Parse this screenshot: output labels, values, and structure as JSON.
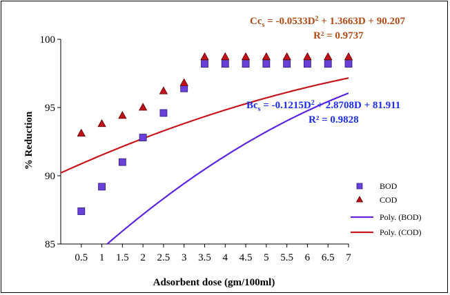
{
  "chart_data": {
    "type": "scatter",
    "xlabel": "Adsorbent dose (gm/100ml)",
    "ylabel": "% Reduction",
    "xlim": [
      0,
      7
    ],
    "ylim": [
      85,
      100
    ],
    "x_ticks": [
      "0.5",
      "1",
      "1.5",
      "2",
      "2.5",
      "3",
      "3.5",
      "4",
      "4.5",
      "5",
      "5.5",
      "6",
      "6.5",
      "7"
    ],
    "y_ticks": [
      "85",
      "90",
      "95",
      "100"
    ],
    "grid": false,
    "legend_position": "right",
    "series": [
      {
        "name": "BOD",
        "marker": "square",
        "color": "#6a40d8",
        "x": [
          0.5,
          1,
          1.5,
          2,
          2.5,
          3,
          3.5,
          4,
          4.5,
          5,
          5.5,
          6,
          6.5,
          7
        ],
        "y": [
          87.4,
          89.2,
          91.0,
          92.8,
          94.6,
          96.4,
          98.2,
          98.2,
          98.2,
          98.2,
          98.2,
          98.2,
          98.2,
          98.2
        ]
      },
      {
        "name": "COD",
        "marker": "triangle",
        "color": "#c0101a",
        "x": [
          0.5,
          1,
          1.5,
          2,
          2.5,
          3,
          3.5,
          4,
          4.5,
          5,
          5.5,
          6,
          6.5,
          7
        ],
        "y": [
          93.1,
          93.8,
          94.4,
          95.0,
          96.2,
          96.8,
          98.7,
          98.7,
          98.7,
          98.7,
          98.7,
          98.7,
          98.7,
          98.7
        ]
      }
    ],
    "trendlines": [
      {
        "name": "Poly. (BOD)",
        "color": "#5a24e0",
        "coefficients": [
          -0.1215,
          2.8708,
          81.911
        ]
      },
      {
        "name": "Poly. (COD)",
        "color": "#c8141c",
        "coefficients": [
          -0.0533,
          1.3663,
          90.207
        ]
      }
    ],
    "annotations": {
      "cod_equation": {
        "text": "Ccs = -0.0533D² + 1.3663D + 90.207",
        "r2": "R² = 0.9737",
        "color": "#b04a14"
      },
      "bod_equation": {
        "text": "Bcs = -0.1215D² + 2.8708D + 81.911",
        "r2": "R² = 0.9828",
        "color": "#1a2cf0"
      }
    }
  }
}
